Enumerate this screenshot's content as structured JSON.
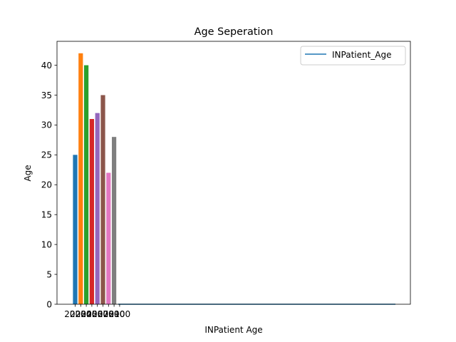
{
  "chart_data": {
    "type": "bar",
    "title": "Age Seperation",
    "xlabel": "INPatient Age",
    "ylabel": "Age",
    "ylim": [
      0,
      44
    ],
    "yticks": [
      0,
      5,
      10,
      15,
      20,
      25,
      30,
      35,
      40
    ],
    "grid": false,
    "legend": {
      "placement": "top-right",
      "entries": [
        "INPatient_Age"
      ]
    },
    "categories": [
      "2020",
      "2030",
      "2040",
      "2050",
      "2060",
      "2070",
      "2080",
      "2090"
    ],
    "values": [
      25,
      42,
      40,
      31,
      32,
      35,
      22,
      28
    ],
    "x_tick_labels": [
      "2020",
      "2030",
      "2040",
      "2050",
      "2060",
      "2070",
      "2080",
      "2090",
      "2100"
    ],
    "bar_colors": [
      "#1f77b4",
      "#ff7f0e",
      "#2ca02c",
      "#d62728",
      "#9467bd",
      "#8c564b",
      "#e377c2",
      "#7f7f7f"
    ],
    "line_series": {
      "name": "INPatient_Age",
      "color": "#1f77b4",
      "y_start": 0,
      "y_end": 0
    }
  }
}
